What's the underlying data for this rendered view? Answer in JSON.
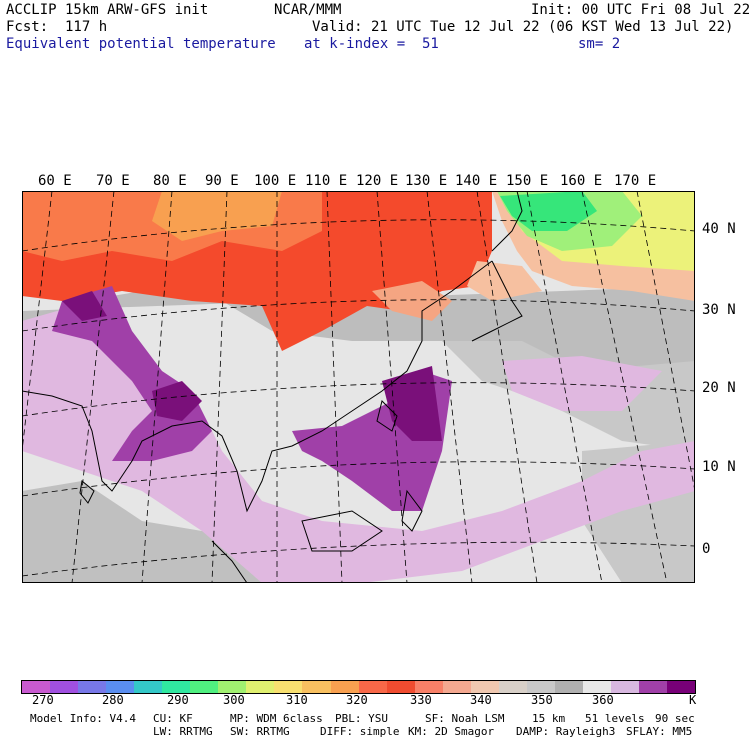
{
  "header": {
    "model": "ACCLIP 15km ARW-GFS init",
    "org": "NCAR/MMM",
    "init": "Init: 00 UTC Fri 08 Jul 22",
    "fcst": "Fcst:  117 h",
    "valid": "Valid: 21 UTC Tue 12 Jul 22 (06 KST Wed 13 Jul 22)",
    "field": "Equivalent potential temperature",
    "level": "at k-index =  51",
    "smooth": "sm= 2"
  },
  "map": {
    "lon_labels": [
      "60 E",
      "70 E",
      "80 E",
      "90 E",
      "100 E",
      "110 E",
      "120 E",
      "130 E",
      "140 E",
      "150 E",
      "160 E",
      "170 E"
    ],
    "lat_labels": [
      "40 N",
      "30 N",
      "20 N",
      "10 N",
      "0"
    ],
    "palette": {
      "coast": "#000000",
      "grid": "#000000",
      "ocean_light": "#e6e6e6",
      "gray": "#bdbdbd",
      "gray_dark": "#a8a8a8",
      "light_purple": "#e0b8e0",
      "mid_purple": "#a040a8",
      "dark_purple": "#7a107a",
      "red": "#f44a2c",
      "orange": "#f97a4a",
      "salmon": "#f5a582",
      "peach": "#f6c0a0",
      "green": "#36e67a",
      "light_green": "#a0f07a",
      "yellow": "#ecf27a"
    }
  },
  "colorbar": {
    "colors": [
      "#c85ad0",
      "#a050e0",
      "#7878e8",
      "#5a8ef0",
      "#34c8c8",
      "#30e8a0",
      "#50f080",
      "#a0f070",
      "#e0f070",
      "#f8e070",
      "#f8c060",
      "#f8a050",
      "#f86848",
      "#f04c30",
      "#f88068",
      "#f4a890",
      "#f0c8b0",
      "#d8d0c8",
      "#c8c8c8",
      "#b0b0b0",
      "#e8e8e8",
      "#d8b8e0",
      "#a040a8",
      "#780078"
    ],
    "labels": [
      "270",
      "280",
      "290",
      "300",
      "310",
      "320",
      "330",
      "340",
      "350",
      "360"
    ],
    "unit": "K"
  },
  "footer": {
    "line1": [
      "Model Info: V4.4",
      "CU: KF",
      "MP: WDM 6class",
      "PBL: YSU",
      "SF: Noah LSM",
      "15 km",
      "51 levels",
      "90 sec"
    ],
    "line2": [
      "LW: RRTMG",
      "SW: RRTMG",
      "DIFF: simple",
      "KM: 2D Smagor",
      "DAMP: Rayleigh3",
      "SFLAY: MM5"
    ]
  }
}
